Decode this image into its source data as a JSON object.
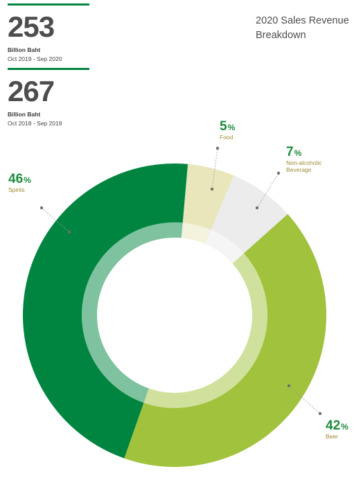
{
  "title": "2020 Sales Revenue Breakdown",
  "title_lines": [
    "2020 Sales Revenue",
    "Breakdown"
  ],
  "stats": [
    {
      "value": "253",
      "unit": "Billion Baht",
      "period": "Oct 2019 - Sep 2020"
    },
    {
      "value": "267",
      "unit": "Billion Baht",
      "period": "Oct 2018 - Sep 2019"
    }
  ],
  "colors": {
    "accent": "#008540",
    "value_text": "#1e8b3d",
    "category_text": "#a08a30",
    "spirits": "#008540",
    "beer": "#a1c23c",
    "food": "#e8e6ba",
    "non_alcoholic": "#ececec"
  },
  "chart_data": {
    "type": "pie",
    "donut": true,
    "title": "2020 Sales Revenue Breakdown",
    "unit": "%",
    "slices": [
      {
        "name": "Food",
        "value": 5,
        "label": [
          "Food"
        ]
      },
      {
        "name": "Non-alcoholic Beverage",
        "value": 7,
        "label": [
          "Non-alcoholic",
          "Beverage"
        ]
      },
      {
        "name": "Beer",
        "value": 42,
        "label": [
          "Beer"
        ]
      },
      {
        "name": "Spirits",
        "value": 46,
        "label": [
          "Spirits"
        ]
      }
    ]
  }
}
